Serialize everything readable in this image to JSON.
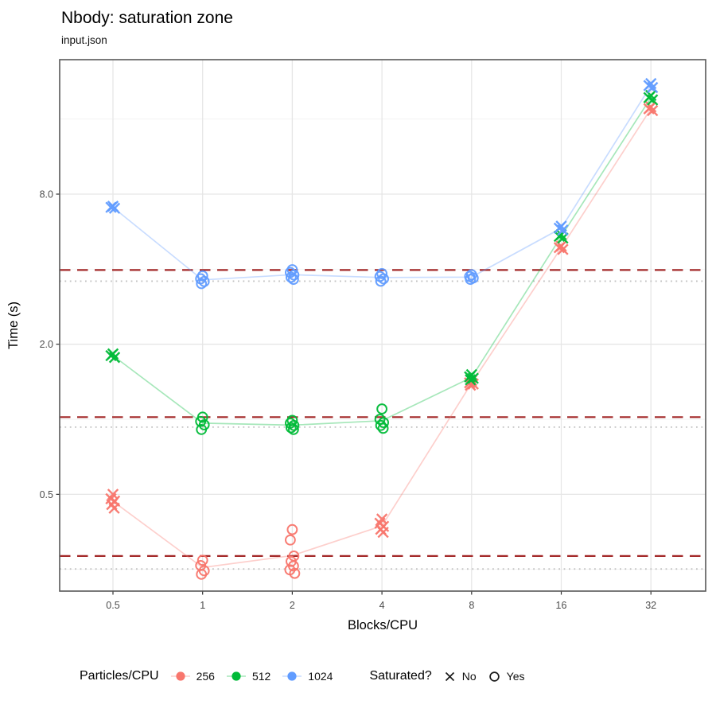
{
  "title": "Nbody: saturation zone",
  "subtitle": "input.json",
  "axes": {
    "x": {
      "label": "Blocks/CPU",
      "ticks": [
        0.5,
        1,
        2,
        4,
        8,
        16,
        32
      ],
      "tick_labels": [
        "0.5",
        "1",
        "2",
        "4",
        "8",
        "16",
        "32"
      ],
      "scale": "log2"
    },
    "y": {
      "label": "Time (s)",
      "ticks": [
        0.5,
        2.0,
        8.0
      ],
      "tick_labels": [
        "0.5",
        "2.0",
        "8.0"
      ],
      "minor": [
        0.25,
        1.0,
        4.0,
        16.0
      ],
      "scale": "log"
    }
  },
  "legend": {
    "color": {
      "title": "Particles/CPU",
      "items": [
        {
          "label": "256",
          "color": "#F8766D"
        },
        {
          "label": "512",
          "color": "#00BA38"
        },
        {
          "label": "1024",
          "color": "#619CFF"
        }
      ]
    },
    "shape": {
      "title": "Saturated?",
      "items": [
        {
          "label": "No",
          "shape": "x"
        },
        {
          "label": "Yes",
          "shape": "circle"
        }
      ]
    }
  },
  "chart_data": {
    "type": "scatter",
    "title": "Nbody: saturation zone",
    "subtitle": "input.json",
    "xlabel": "Blocks/CPU",
    "ylabel": "Time (s)",
    "x_scale": "log",
    "y_scale": "log",
    "xlim": [
      0.33,
      48
    ],
    "ylim": [
      0.2,
      28
    ],
    "x_ticks": [
      0.5,
      1,
      2,
      4,
      8,
      16,
      32
    ],
    "y_ticks": [
      0.5,
      2.0,
      8.0
    ],
    "grid": {
      "major_y": [
        0.5,
        2.0,
        8.0
      ],
      "minor_y": [
        0.25,
        1.0,
        4.0,
        16.0
      ],
      "major_x": [
        0.5,
        1,
        2,
        4,
        8,
        16,
        32
      ]
    },
    "series": [
      {
        "name": "256",
        "color": "#F8766D",
        "points": [
          {
            "x": 0.5,
            "saturated": false,
            "reps": [
              0.5,
              0.48,
              0.47,
              0.455,
              0.44
            ]
          },
          {
            "x": 1,
            "saturated": true,
            "reps": [
              0.272,
              0.259,
              0.247,
              0.239
            ]
          },
          {
            "x": 2,
            "saturated": true,
            "reps": [
              0.361,
              0.328,
              0.283,
              0.269,
              0.258,
              0.249,
              0.241
            ]
          },
          {
            "x": 4,
            "saturated": false,
            "reps": [
              0.398,
              0.383,
              0.372,
              0.362,
              0.352
            ]
          },
          {
            "x": 8,
            "saturated": false,
            "reps": [
              1.43,
              1.4,
              1.385,
              1.37
            ]
          },
          {
            "x": 16,
            "saturated": false,
            "reps": [
              4.95,
              4.88,
              4.8
            ]
          },
          {
            "x": 32,
            "saturated": false,
            "reps": [
              17.9,
              17.6,
              17.3
            ]
          }
        ]
      },
      {
        "name": "512",
        "color": "#00BA38",
        "points": [
          {
            "x": 0.5,
            "saturated": false,
            "reps": [
              1.83,
              1.8,
              1.77
            ]
          },
          {
            "x": 1,
            "saturated": true,
            "reps": [
              1.02,
              0.98,
              0.95,
              0.91
            ]
          },
          {
            "x": 2,
            "saturated": true,
            "reps": [
              0.99,
              0.965,
              0.945,
              0.925,
              0.91
            ]
          },
          {
            "x": 4,
            "saturated": true,
            "reps": [
              1.1,
              1.0,
              0.97,
              0.945,
              0.92
            ]
          },
          {
            "x": 8,
            "saturated": false,
            "reps": [
              1.51,
              1.48,
              1.46,
              1.44
            ]
          },
          {
            "x": 16,
            "saturated": false,
            "reps": [
              5.5,
              5.42,
              5.33
            ]
          },
          {
            "x": 32,
            "saturated": false,
            "reps": [
              19.9,
              19.5,
              19.1
            ]
          }
        ]
      },
      {
        "name": "1024",
        "color": "#619CFF",
        "points": [
          {
            "x": 0.5,
            "saturated": false,
            "reps": [
              7.15,
              7.08,
              7.02
            ]
          },
          {
            "x": 1,
            "saturated": true,
            "reps": [
              3.76,
              3.66,
              3.57,
              3.5
            ]
          },
          {
            "x": 2,
            "saturated": true,
            "reps": [
              3.98,
              3.88,
              3.79,
              3.71,
              3.64
            ]
          },
          {
            "x": 4,
            "saturated": true,
            "reps": [
              3.84,
              3.74,
              3.66,
              3.58
            ]
          },
          {
            "x": 8,
            "saturated": true,
            "reps": [
              3.8,
              3.74,
              3.69,
              3.64
            ]
          },
          {
            "x": 16,
            "saturated": false,
            "reps": [
              5.95,
              5.84,
              5.74
            ]
          },
          {
            "x": 32,
            "saturated": false,
            "reps": [
              22.2,
              21.8,
              21.4
            ]
          }
        ]
      }
    ],
    "reference_lines": {
      "dashed": {
        "color": "#A32929",
        "style": "dashed",
        "values": [
          3.97,
          1.02,
          0.283
        ]
      },
      "dotted": {
        "color": "#C2C2C2",
        "style": "dotted",
        "values": [
          3.58,
          0.93,
          0.251
        ]
      }
    },
    "legend_position": "bottom"
  }
}
